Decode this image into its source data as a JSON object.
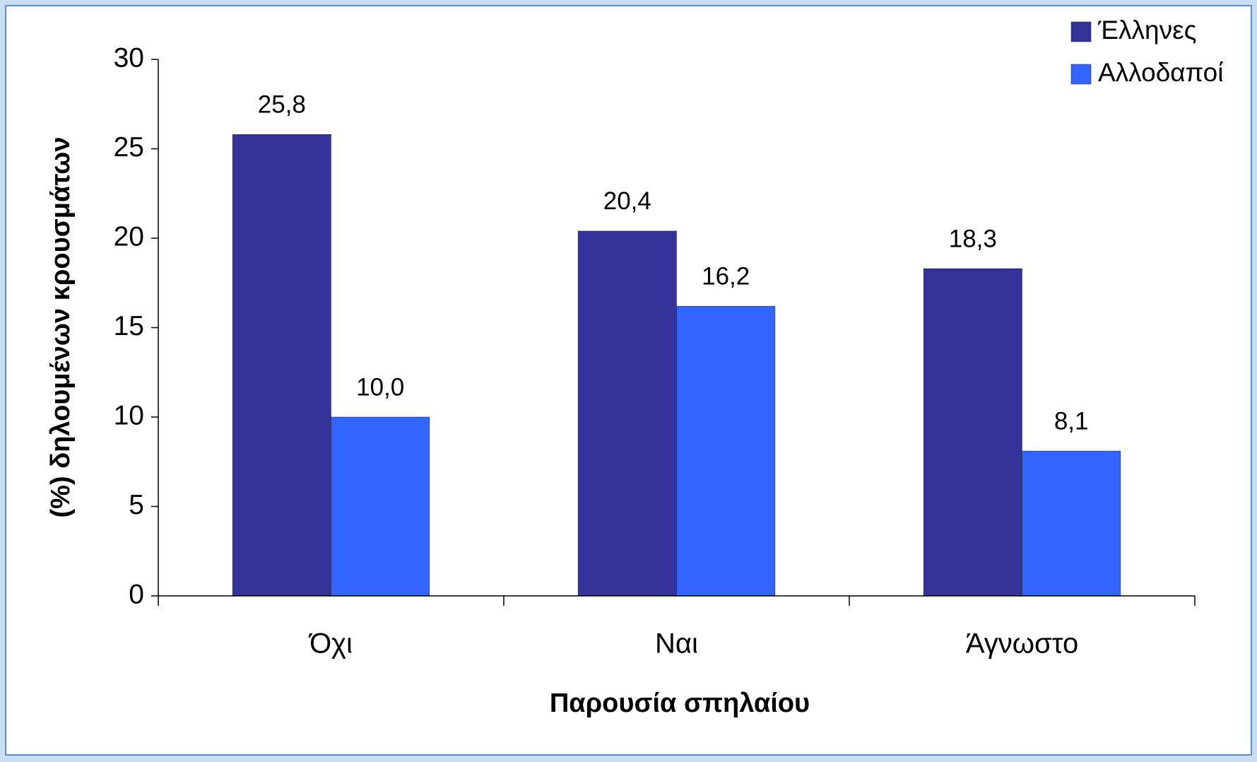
{
  "chart_data": {
    "type": "bar",
    "categories": [
      "Όχι",
      "Ναι",
      "Άγνωστο"
    ],
    "series": [
      {
        "name": "Έλληνες",
        "color": "#333399",
        "values": [
          25.8,
          20.4,
          18.3
        ],
        "value_labels": [
          "25,8",
          "20,4",
          "18,3"
        ]
      },
      {
        "name": "Αλλοδαποί",
        "color": "#3366ff",
        "values": [
          10.0,
          16.2,
          8.1
        ],
        "value_labels": [
          "10,0",
          "16,2",
          "8,1"
        ]
      }
    ],
    "x_label": "Παρουσία σπηλαίου",
    "y_label": "(%) δηλουμένων κρουσμάτων",
    "ylim": [
      0,
      30
    ],
    "yticks": [
      0,
      5,
      10,
      15,
      20,
      25,
      30
    ],
    "grid": false,
    "legend": "top-right"
  }
}
